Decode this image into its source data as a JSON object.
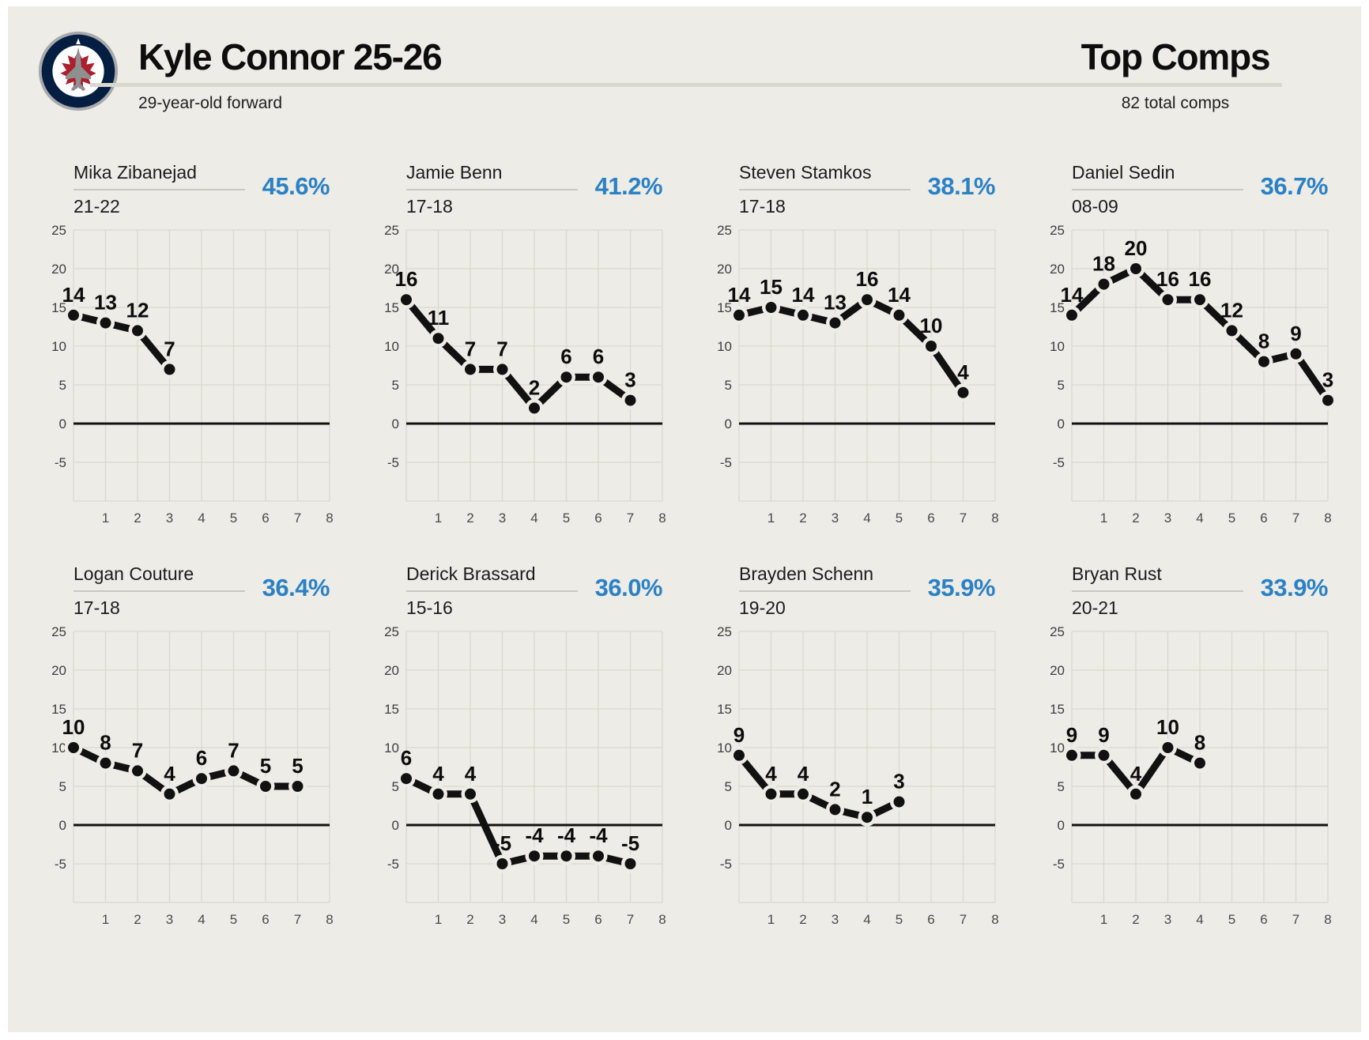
{
  "header": {
    "logo": "winnipeg-jets-logo",
    "title": "Kyle Connor 25-26",
    "subtitle": "29-year-old forward",
    "section_title": "Top Comps",
    "section_subtitle": "82 total comps"
  },
  "colors": {
    "background": "#edece6",
    "accent_blue": "#2b81c5",
    "line": "#111111",
    "grid": "#d8d7cf",
    "zero_line": "#111111",
    "name_underline": "#c9c8c0",
    "divider": "#d9d8d0"
  },
  "axis": {
    "y_ticks": [
      25,
      20,
      15,
      10,
      5,
      0,
      -5
    ],
    "x_ticks": [
      1,
      2,
      3,
      4,
      5,
      6,
      7,
      8
    ],
    "y_max": 25,
    "y_min": -10,
    "x_min": 0,
    "x_max": 8,
    "grid_y_values": [
      25,
      20,
      15,
      10,
      5,
      -5,
      -10
    ]
  },
  "chart_data": [
    {
      "type": "line",
      "player": "Mika Zibanejad",
      "season": "21-22",
      "match_pct": "45.6%",
      "x_start": 0,
      "values": [
        14,
        13,
        12,
        7
      ]
    },
    {
      "type": "line",
      "player": "Jamie Benn",
      "season": "17-18",
      "match_pct": "41.2%",
      "x_start": 0,
      "values": [
        16,
        11,
        7,
        7,
        2,
        6,
        6,
        3
      ]
    },
    {
      "type": "line",
      "player": "Steven Stamkos",
      "season": "17-18",
      "match_pct": "38.1%",
      "x_start": 0,
      "values": [
        14,
        15,
        14,
        13,
        16,
        14,
        10,
        4
      ]
    },
    {
      "type": "line",
      "player": "Daniel Sedin",
      "season": "08-09",
      "match_pct": "36.7%",
      "x_start": 0,
      "values": [
        14,
        18,
        20,
        16,
        16,
        12,
        8,
        9,
        3
      ]
    },
    {
      "type": "line",
      "player": "Logan Couture",
      "season": "17-18",
      "match_pct": "36.4%",
      "x_start": 0,
      "values": [
        10,
        8,
        7,
        4,
        6,
        7,
        5,
        5
      ]
    },
    {
      "type": "line",
      "player": "Derick Brassard",
      "season": "15-16",
      "match_pct": "36.0%",
      "x_start": 0,
      "values": [
        6,
        4,
        4,
        -5,
        -4,
        -4,
        -4,
        -5
      ]
    },
    {
      "type": "line",
      "player": "Brayden Schenn",
      "season": "19-20",
      "match_pct": "35.9%",
      "x_start": 0,
      "values": [
        9,
        4,
        4,
        2,
        1,
        3
      ]
    },
    {
      "type": "line",
      "player": "Bryan Rust",
      "season": "20-21",
      "match_pct": "33.9%",
      "x_start": 0,
      "values": [
        9,
        9,
        4,
        10,
        8
      ]
    }
  ]
}
